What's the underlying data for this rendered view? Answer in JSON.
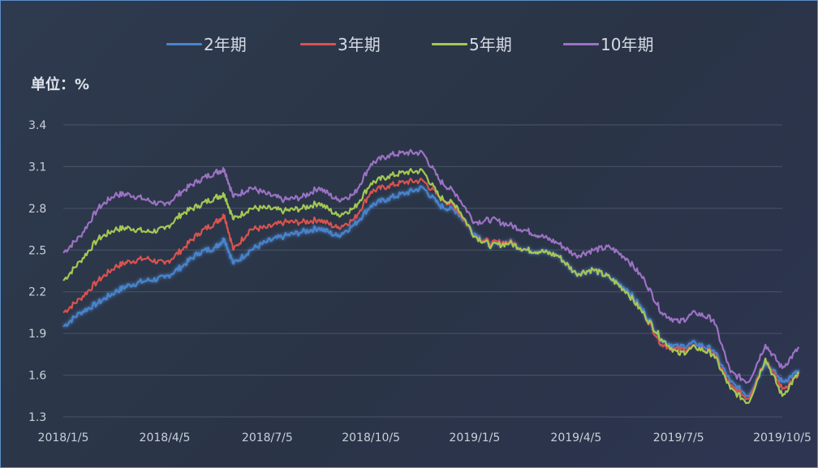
{
  "chart_data": {
    "type": "line",
    "title": "",
    "unit_label": "单位：%",
    "xlabel": "",
    "ylabel": "",
    "ylim": [
      1.3,
      3.4
    ],
    "yticks": [
      "3.4",
      "3.1",
      "2.8",
      "2.5",
      "2.2",
      "1.9",
      "1.6",
      "1.3"
    ],
    "xticks": [
      "2018/1/5",
      "2018/4/5",
      "2018/7/5",
      "2018/10/5",
      "2019/1/5",
      "2019/4/5",
      "2019/7/5",
      "2019/10/5"
    ],
    "x_dates": [
      "2018/1/5",
      "2018/1/20",
      "2018/2/5",
      "2018/2/20",
      "2018/3/5",
      "2018/3/20",
      "2018/4/5",
      "2018/4/20",
      "2018/5/5",
      "2018/5/20",
      "2018/5/28",
      "2018/6/5",
      "2018/6/20",
      "2018/7/5",
      "2018/7/20",
      "2018/8/5",
      "2018/8/20",
      "2018/9/5",
      "2018/9/20",
      "2018/10/5",
      "2018/10/20",
      "2018/11/5",
      "2018/11/20",
      "2018/12/5",
      "2018/12/20",
      "2019/1/5",
      "2019/1/20",
      "2019/2/5",
      "2019/2/20",
      "2019/3/5",
      "2019/3/20",
      "2019/4/5",
      "2019/4/20",
      "2019/5/5",
      "2019/5/20",
      "2019/6/5",
      "2019/6/20",
      "2019/7/5",
      "2019/7/20",
      "2019/8/5",
      "2019/8/20",
      "2019/9/5",
      "2019/9/20",
      "2019/10/5",
      "2019/10/20"
    ],
    "grid": true,
    "legend_position": "top",
    "series": [
      {
        "name": "2年期",
        "color": "#4a84cc",
        "values": [
          1.95,
          2.05,
          2.12,
          2.2,
          2.25,
          2.28,
          2.3,
          2.38,
          2.48,
          2.52,
          2.58,
          2.4,
          2.5,
          2.56,
          2.6,
          2.63,
          2.66,
          2.6,
          2.68,
          2.82,
          2.87,
          2.91,
          2.95,
          2.82,
          2.78,
          2.62,
          2.53,
          2.56,
          2.5,
          2.49,
          2.46,
          2.33,
          2.36,
          2.3,
          2.22,
          2.05,
          1.85,
          1.8,
          1.83,
          1.78,
          1.55,
          1.45,
          1.7,
          1.55,
          1.63
        ]
      },
      {
        "name": "3年期",
        "color": "#d9534f",
        "values": [
          2.05,
          2.15,
          2.28,
          2.38,
          2.42,
          2.44,
          2.4,
          2.5,
          2.62,
          2.7,
          2.75,
          2.5,
          2.65,
          2.66,
          2.7,
          2.7,
          2.72,
          2.66,
          2.72,
          2.92,
          2.96,
          2.99,
          3.0,
          2.88,
          2.8,
          2.6,
          2.55,
          2.56,
          2.5,
          2.49,
          2.46,
          2.33,
          2.36,
          2.3,
          2.2,
          2.03,
          1.82,
          1.78,
          1.8,
          1.76,
          1.52,
          1.43,
          1.72,
          1.5,
          1.6
        ]
      },
      {
        "name": "5年期",
        "color": "#a4c853",
        "values": [
          2.28,
          2.42,
          2.58,
          2.65,
          2.66,
          2.63,
          2.65,
          2.76,
          2.82,
          2.88,
          2.9,
          2.72,
          2.8,
          2.8,
          2.78,
          2.8,
          2.84,
          2.75,
          2.8,
          2.98,
          3.03,
          3.06,
          3.07,
          2.88,
          2.82,
          2.6,
          2.53,
          2.55,
          2.5,
          2.49,
          2.46,
          2.33,
          2.36,
          2.3,
          2.2,
          2.03,
          1.86,
          1.75,
          1.8,
          1.75,
          1.5,
          1.4,
          1.72,
          1.45,
          1.62
        ]
      },
      {
        "name": "10年期",
        "color": "#9b72c3",
        "values": [
          2.48,
          2.6,
          2.8,
          2.9,
          2.9,
          2.86,
          2.82,
          2.92,
          3.0,
          3.06,
          3.08,
          2.88,
          2.95,
          2.9,
          2.86,
          2.88,
          2.95,
          2.86,
          2.9,
          3.12,
          3.18,
          3.2,
          3.2,
          3.0,
          2.9,
          2.7,
          2.72,
          2.68,
          2.64,
          2.6,
          2.55,
          2.46,
          2.5,
          2.52,
          2.44,
          2.28,
          2.05,
          1.98,
          2.05,
          2.0,
          1.62,
          1.55,
          1.82,
          1.65,
          1.8
        ]
      }
    ]
  }
}
